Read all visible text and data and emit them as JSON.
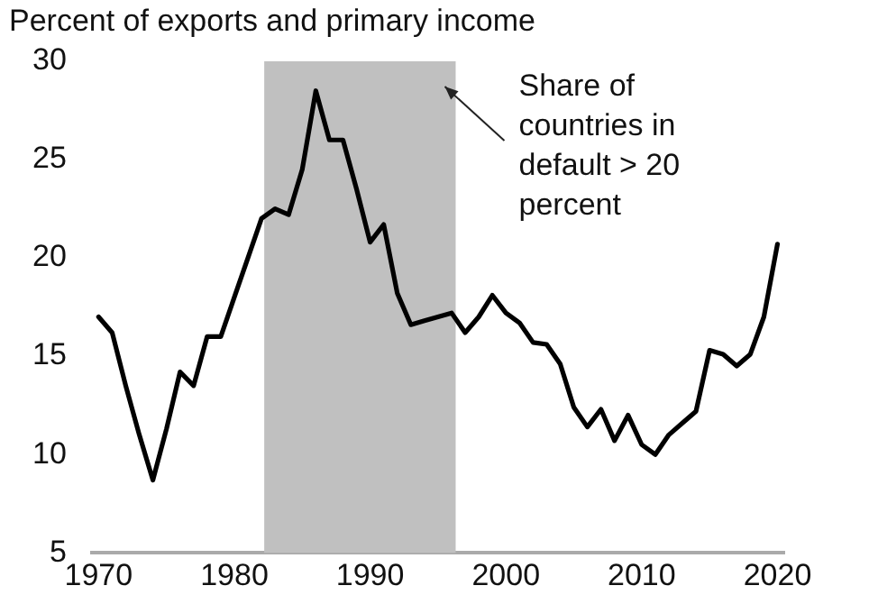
{
  "chart_data": {
    "type": "line",
    "ylabel": "Percent of exports and primary income",
    "x": [
      1970,
      1971,
      1972,
      1973,
      1974,
      1975,
      1976,
      1977,
      1978,
      1979,
      1980,
      1981,
      1982,
      1983,
      1984,
      1985,
      1986,
      1987,
      1988,
      1989,
      1990,
      1991,
      1992,
      1993,
      1994,
      1995,
      1996,
      1997,
      1998,
      1999,
      2000,
      2001,
      2002,
      2003,
      2004,
      2005,
      2006,
      2007,
      2008,
      2009,
      2010,
      2011,
      2012,
      2013,
      2014,
      2015,
      2016,
      2017,
      2018,
      2019,
      2020
    ],
    "series": [
      {
        "color": "#000000",
        "values": [
          17,
          16.2,
          13.5,
          11,
          8.7,
          11.3,
          14.2,
          13.5,
          16,
          16,
          18,
          20,
          22,
          22.5,
          22.2,
          24.5,
          28.5,
          26,
          26,
          23.5,
          20.8,
          21.7,
          18.2,
          16.6,
          16.8,
          17,
          17.2,
          16.2,
          17,
          18.1,
          17.2,
          16.7,
          15.7,
          15.6,
          14.6,
          12.4,
          11.4,
          12.3,
          10.7,
          12,
          10.5,
          10,
          11,
          11.6,
          12.2,
          15.3,
          15.1,
          14.5,
          15.1,
          17,
          20.7
        ]
      }
    ],
    "xlim": [
      1969.5,
      2020.5
    ],
    "xticks": [
      1970,
      1980,
      1990,
      2000,
      2010,
      2020
    ],
    "ylim": [
      5,
      30
    ],
    "yticks": [
      5,
      10,
      15,
      20,
      25,
      30
    ],
    "bands": [
      {
        "axis": "x",
        "from": 1982.2,
        "to": 1996.3,
        "label": "Share of countries in default > 20 percent",
        "color": "#c0c0c0"
      }
    ],
    "grid": false,
    "legend": false,
    "marker": "none",
    "line_style": "solid"
  }
}
